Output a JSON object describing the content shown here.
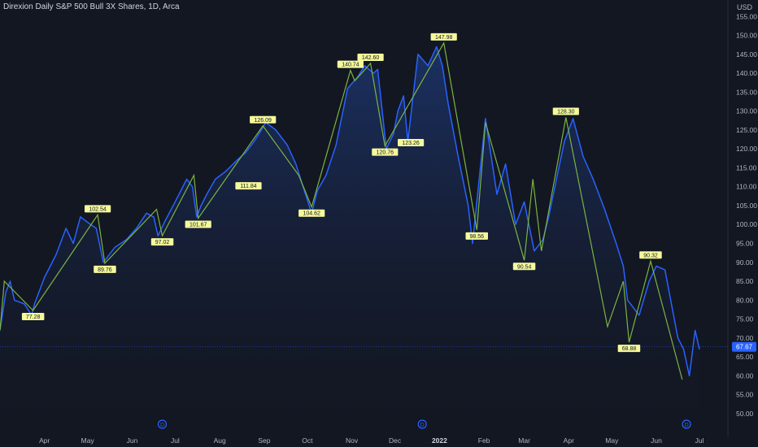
{
  "header": {
    "title": "Direxion Daily S&P 500 Bull 3X Shares, 1D, Arca",
    "currency": "USD"
  },
  "colors": {
    "background": "#131722",
    "price_line": "#2962ff",
    "area_fill": "#1e3a7a",
    "zigzag": "#7cb342",
    "label_bg": "#f5f99a",
    "last_price_bg": "#2962ff",
    "axis_text": "#b2b5be"
  },
  "price_axis_ticks": [
    "155.00",
    "150.00",
    "145.00",
    "140.00",
    "135.00",
    "130.00",
    "125.00",
    "120.00",
    "115.00",
    "110.00",
    "105.00",
    "100.00",
    "95.00",
    "90.00",
    "85.00",
    "80.00",
    "75.00",
    "70.00",
    "65.00",
    "60.00",
    "55.00",
    "50.00"
  ],
  "last_price": "67.67",
  "dividend_marker": "D",
  "chart_data": {
    "type": "line",
    "title": "Direxion Daily S&P 500 Bull 3X Shares, 1D, Arca",
    "ylabel": "USD",
    "ylim": [
      48,
      158
    ],
    "x_tick_labels": [
      "Apr",
      "May",
      "Jun",
      "Jul",
      "Aug",
      "Sep",
      "Oct",
      "Nov",
      "Dec",
      "2022",
      "Feb",
      "Mar",
      "Apr",
      "May",
      "Jun",
      "Jul"
    ],
    "series": [
      {
        "x": [
          "2021-03-01",
          "2021-03-05",
          "2021-03-08",
          "2021-03-11",
          "2021-03-18",
          "2021-03-23",
          "2021-03-25",
          "2021-04-01",
          "2021-04-09",
          "2021-04-16",
          "2021-04-21",
          "2021-04-26",
          "2021-05-03",
          "2021-05-07",
          "2021-05-12",
          "2021-05-20",
          "2021-05-28",
          "2021-06-04",
          "2021-06-11",
          "2021-06-16",
          "2021-06-19",
          "2021-06-24",
          "2021-07-01",
          "2021-07-09",
          "2021-07-13",
          "2021-07-16",
          "2021-07-19",
          "2021-07-23",
          "2021-07-29",
          "2021-08-05",
          "2021-08-13",
          "2021-08-19",
          "2021-08-25",
          "2021-08-30",
          "2021-09-02",
          "2021-09-09",
          "2021-09-17",
          "2021-09-23",
          "2021-09-28",
          "2021-10-04",
          "2021-10-08",
          "2021-10-14",
          "2021-10-21",
          "2021-10-29",
          "2021-11-05",
          "2021-11-10",
          "2021-11-16",
          "2021-11-19",
          "2021-11-25",
          "2021-11-30",
          "2021-12-03",
          "2021-12-07",
          "2021-12-10",
          "2021-12-17",
          "2021-12-24",
          "2021-12-30",
          "2022-01-03",
          "2022-01-07",
          "2022-01-14",
          "2022-01-21",
          "2022-01-24",
          "2022-02-02",
          "2022-02-10",
          "2022-02-16",
          "2022-02-23",
          "2022-03-01",
          "2022-03-08",
          "2022-03-14",
          "2022-03-18",
          "2022-03-24",
          "2022-03-29",
          "2022-04-04",
          "2022-04-11",
          "2022-04-18",
          "2022-04-26",
          "2022-05-04",
          "2022-05-09",
          "2022-05-12",
          "2022-05-20",
          "2022-05-27",
          "2022-06-01",
          "2022-06-07",
          "2022-06-13",
          "2022-06-16",
          "2022-06-20",
          "2022-06-24",
          "2022-06-28",
          "2022-07-01"
        ],
        "y": [
          72,
          82,
          85,
          80,
          79,
          76,
          79,
          86,
          92,
          99,
          95,
          102,
          100,
          99,
          90,
          94,
          96,
          99,
          103,
          102,
          97,
          101,
          106,
          112,
          110,
          102,
          105,
          108,
          112,
          114,
          117,
          119,
          122,
          125,
          127,
          125,
          121,
          116,
          110,
          103,
          109,
          113,
          121,
          136,
          139,
          142,
          140,
          141,
          120,
          124,
          130,
          134,
          122,
          145,
          142,
          147,
          142,
          132,
          118,
          105,
          95,
          128,
          108,
          116,
          100,
          106,
          93,
          96,
          102,
          113,
          122,
          128,
          118,
          112,
          104,
          95,
          89,
          80,
          76,
          85,
          89,
          88,
          76,
          70,
          67,
          60,
          72,
          67
        ]
      }
    ],
    "zigzag": {
      "x": [
        "2021-03-01",
        "2021-03-04",
        "2021-03-24",
        "2021-05-08",
        "2021-05-13",
        "2021-06-18",
        "2021-06-22",
        "2021-07-14",
        "2021-07-17",
        "2021-08-31",
        "2021-09-25",
        "2021-10-04",
        "2021-10-31",
        "2021-11-03",
        "2021-11-14",
        "2021-11-24",
        "2022-01-04",
        "2022-01-27",
        "2022-02-02",
        "2022-03-01",
        "2022-03-07",
        "2022-03-13",
        "2022-03-30",
        "2022-04-28",
        "2022-05-09",
        "2022-05-13",
        "2022-05-28",
        "2022-06-19"
      ],
      "y": [
        72,
        85,
        77.28,
        102.54,
        89.76,
        104,
        97.02,
        113,
        101.67,
        126.09,
        113,
        104.62,
        140.74,
        138,
        142.6,
        120.76,
        147.98,
        98.56,
        127,
        90.54,
        112,
        93,
        128.3,
        73,
        85,
        68.88,
        90.32,
        59
      ]
    },
    "pivot_labels": [
      {
        "x": "2021-03-24",
        "y": 77.28,
        "text": "77.28",
        "position": "below"
      },
      {
        "x": "2021-05-08",
        "y": 102.54,
        "text": "102.54",
        "position": "above"
      },
      {
        "x": "2021-05-13",
        "y": 89.76,
        "text": "89.76",
        "position": "below"
      },
      {
        "x": "2021-06-22",
        "y": 97.02,
        "text": "97.02",
        "position": "below"
      },
      {
        "x": "2021-07-17",
        "y": 101.67,
        "text": "101.67",
        "position": "below"
      },
      {
        "x": "2021-08-31",
        "y": 126.09,
        "text": "126.09",
        "position": "above"
      },
      {
        "x": "2021-08-21",
        "y": 111.84,
        "text": "111.84",
        "position": "below"
      },
      {
        "x": "2021-10-04",
        "y": 104.62,
        "text": "104.62",
        "position": "below"
      },
      {
        "x": "2021-10-31",
        "y": 140.74,
        "text": "140.74",
        "position": "above"
      },
      {
        "x": "2021-11-14",
        "y": 142.6,
        "text": "142.60",
        "position": "above"
      },
      {
        "x": "2021-11-24",
        "y": 120.76,
        "text": "120.76",
        "position": "below"
      },
      {
        "x": "2021-12-12",
        "y": 123.26,
        "text": "123.26",
        "position": "below"
      },
      {
        "x": "2022-01-04",
        "y": 147.98,
        "text": "147.98",
        "position": "above"
      },
      {
        "x": "2022-01-27",
        "y": 98.56,
        "text": "98.56",
        "position": "below"
      },
      {
        "x": "2022-03-01",
        "y": 90.54,
        "text": "90.54",
        "position": "below"
      },
      {
        "x": "2022-03-30",
        "y": 128.3,
        "text": "128.30",
        "position": "above"
      },
      {
        "x": "2022-05-13",
        "y": 68.88,
        "text": "68.88",
        "position": "below"
      },
      {
        "x": "2022-05-28",
        "y": 90.32,
        "text": "90.32",
        "position": "above"
      }
    ],
    "dividend_dates": [
      "2021-06-22",
      "2021-12-20",
      "2022-06-22"
    ],
    "grid": false,
    "legend": "none"
  }
}
